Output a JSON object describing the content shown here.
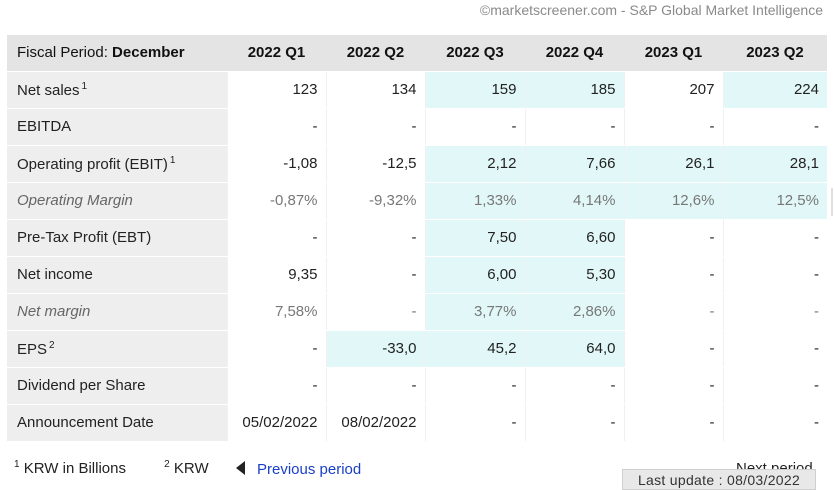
{
  "credit": "©marketscreener.com - S&P Global Market Intelligence",
  "table": {
    "period_label": "Fiscal Period:",
    "period_value": "December",
    "columns": [
      "2022 Q1",
      "2022 Q2",
      "2022 Q3",
      "2022 Q4",
      "2023 Q1",
      "2023 Q2"
    ],
    "rows": [
      {
        "label": "Net sales",
        "sup": "1",
        "italic": false,
        "values": [
          "123",
          "134",
          "159",
          "185",
          "207",
          "224"
        ],
        "highlight": [
          false,
          false,
          true,
          true,
          false,
          true
        ]
      },
      {
        "label": "EBITDA",
        "sup": "",
        "italic": false,
        "values": [
          "-",
          "-",
          "-",
          "-",
          "-",
          "-"
        ],
        "highlight": [
          false,
          false,
          false,
          false,
          false,
          false
        ]
      },
      {
        "label": "Operating profit (EBIT)",
        "sup": "1",
        "italic": false,
        "values": [
          "-1,08",
          "-12,5",
          "2,12",
          "7,66",
          "26,1",
          "28,1"
        ],
        "highlight": [
          false,
          false,
          true,
          true,
          true,
          true
        ]
      },
      {
        "label": "Operating Margin",
        "sup": "",
        "italic": true,
        "values": [
          "-0,87%",
          "-9,32%",
          "1,33%",
          "4,14%",
          "12,6%",
          "12,5%"
        ],
        "highlight": [
          false,
          false,
          true,
          true,
          true,
          true
        ]
      },
      {
        "label": "Pre-Tax Profit (EBT)",
        "sup": "",
        "italic": false,
        "values": [
          "-",
          "-",
          "7,50",
          "6,60",
          "-",
          "-"
        ],
        "highlight": [
          false,
          false,
          true,
          true,
          false,
          false
        ]
      },
      {
        "label": "Net income",
        "sup": "",
        "italic": false,
        "values": [
          "9,35",
          "-",
          "6,00",
          "5,30",
          "-",
          "-"
        ],
        "highlight": [
          false,
          false,
          true,
          true,
          false,
          false
        ]
      },
      {
        "label": "Net margin",
        "sup": "",
        "italic": true,
        "values": [
          "7,58%",
          "-",
          "3,77%",
          "2,86%",
          "-",
          "-"
        ],
        "highlight": [
          false,
          false,
          true,
          true,
          false,
          false
        ]
      },
      {
        "label": "EPS",
        "sup": "2",
        "italic": false,
        "values": [
          "-",
          "-33,0",
          "45,2",
          "64,0",
          "-",
          "-"
        ],
        "highlight": [
          false,
          true,
          true,
          true,
          false,
          false
        ]
      },
      {
        "label": "Dividend per Share",
        "sup": "",
        "italic": false,
        "values": [
          "-",
          "-",
          "-",
          "-",
          "-",
          "-"
        ],
        "highlight": [
          false,
          false,
          false,
          false,
          false,
          false
        ]
      },
      {
        "label": "Announcement Date",
        "sup": "",
        "italic": false,
        "values": [
          "05/02/2022",
          "08/02/2022",
          "-",
          "-",
          "-",
          "-"
        ],
        "highlight": [
          false,
          false,
          false,
          false,
          false,
          false
        ]
      }
    ]
  },
  "footnotes": [
    {
      "num": "1",
      "text": "KRW in Billions"
    },
    {
      "num": "2",
      "text": "KRW"
    }
  ],
  "nav": {
    "previous_label": "Previous period",
    "next_label": "Next period"
  },
  "last_update": "Last update : 08/03/2022",
  "colors": {
    "highlight": "#e2f8f8",
    "header_bg": "#e4e4e4",
    "label_bg": "#eeeeee",
    "link": "#1a3fc7"
  }
}
